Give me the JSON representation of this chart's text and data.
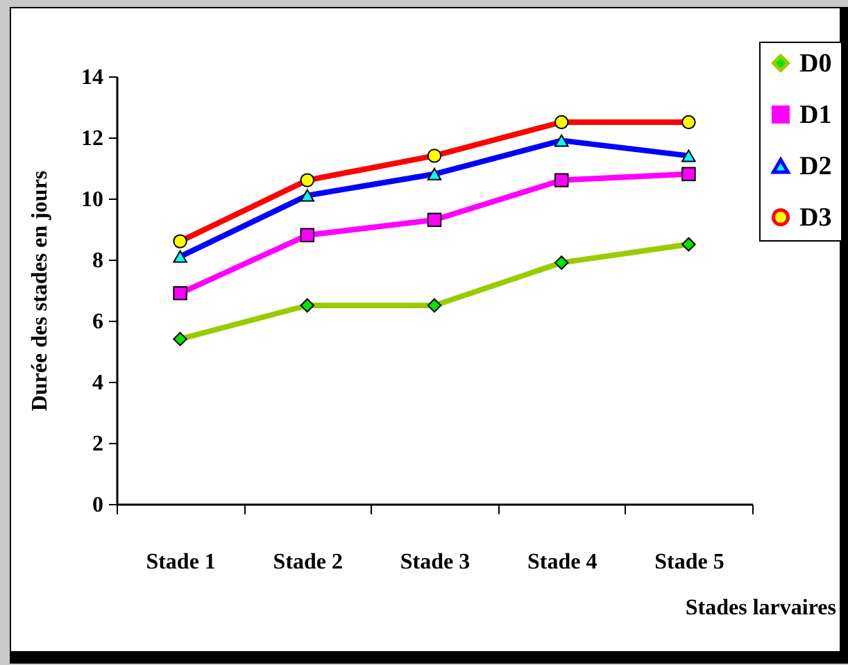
{
  "chart_data": {
    "type": "line",
    "xlabel": "Stades larvaires",
    "ylabel": "Durée des stades en jours",
    "categories": [
      "Stade 1",
      "Stade 2",
      "Stade 3",
      "Stade 4",
      "Stade 5"
    ],
    "series": [
      {
        "name": "D0",
        "color": "#99cc00",
        "marker": "diamond",
        "values": [
          5.4,
          6.5,
          6.5,
          7.9,
          8.5
        ]
      },
      {
        "name": "D1",
        "color": "#ff00ff",
        "marker": "square",
        "values": [
          6.9,
          8.8,
          9.3,
          10.6,
          10.8
        ]
      },
      {
        "name": "D2",
        "color": "#0000ff",
        "marker": "triangle",
        "values": [
          8.1,
          10.1,
          10.8,
          11.9,
          11.4
        ]
      },
      {
        "name": "D3",
        "color": "#ff0000",
        "marker": "circle",
        "values": [
          8.6,
          10.6,
          11.4,
          12.5,
          12.5
        ]
      }
    ],
    "ylim": [
      0,
      14
    ],
    "yticks": [
      0,
      2,
      4,
      6,
      8,
      10,
      12,
      14
    ],
    "grid": false,
    "legend": "top right",
    "line_style": "solid"
  }
}
